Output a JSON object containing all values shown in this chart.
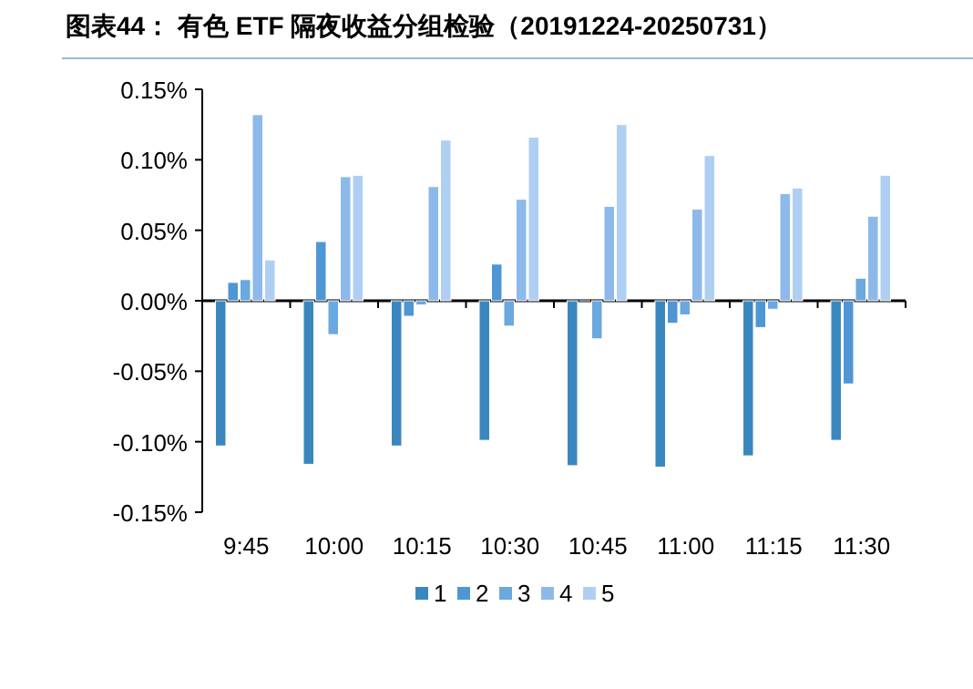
{
  "chart_data": {
    "type": "bar",
    "title": "图表44： 有色 ETF 隔夜收益分组检验（20191224-20250731）",
    "categories": [
      "9:45",
      "10:00",
      "10:15",
      "10:30",
      "10:45",
      "11:00",
      "11:15",
      "11:30"
    ],
    "series": [
      {
        "name": "1",
        "color": "#3a87c0",
        "values": [
          -0.103,
          -0.116,
          -0.103,
          -0.099,
          -0.117,
          -0.118,
          -0.11,
          -0.099
        ]
      },
      {
        "name": "2",
        "color": "#4f96d4",
        "values": [
          0.013,
          0.042,
          -0.011,
          0.026,
          0.0,
          -0.016,
          -0.019,
          -0.059
        ]
      },
      {
        "name": "3",
        "color": "#6aa8e0",
        "values": [
          0.015,
          -0.024,
          -0.003,
          -0.018,
          -0.027,
          -0.01,
          -0.006,
          0.016
        ]
      },
      {
        "name": "4",
        "color": "#8db9ea",
        "values": [
          0.132,
          0.088,
          0.081,
          0.072,
          0.067,
          0.065,
          0.076,
          0.06
        ]
      },
      {
        "name": "5",
        "color": "#afcff2",
        "values": [
          0.029,
          0.089,
          0.114,
          0.116,
          0.125,
          0.103,
          0.08,
          0.089
        ]
      }
    ],
    "ylim": [
      -0.15,
      0.15
    ],
    "yticks": [
      {
        "value": -0.15,
        "label": "-0.15%"
      },
      {
        "value": -0.1,
        "label": "-0.10%"
      },
      {
        "value": -0.05,
        "label": "-0.05%"
      },
      {
        "value": 0,
        "label": "0.00%"
      },
      {
        "value": 0.05,
        "label": "0.05%"
      },
      {
        "value": 0.1,
        "label": "0.10%"
      },
      {
        "value": 0.15,
        "label": "0.15%"
      }
    ],
    "legend": "bottom"
  }
}
